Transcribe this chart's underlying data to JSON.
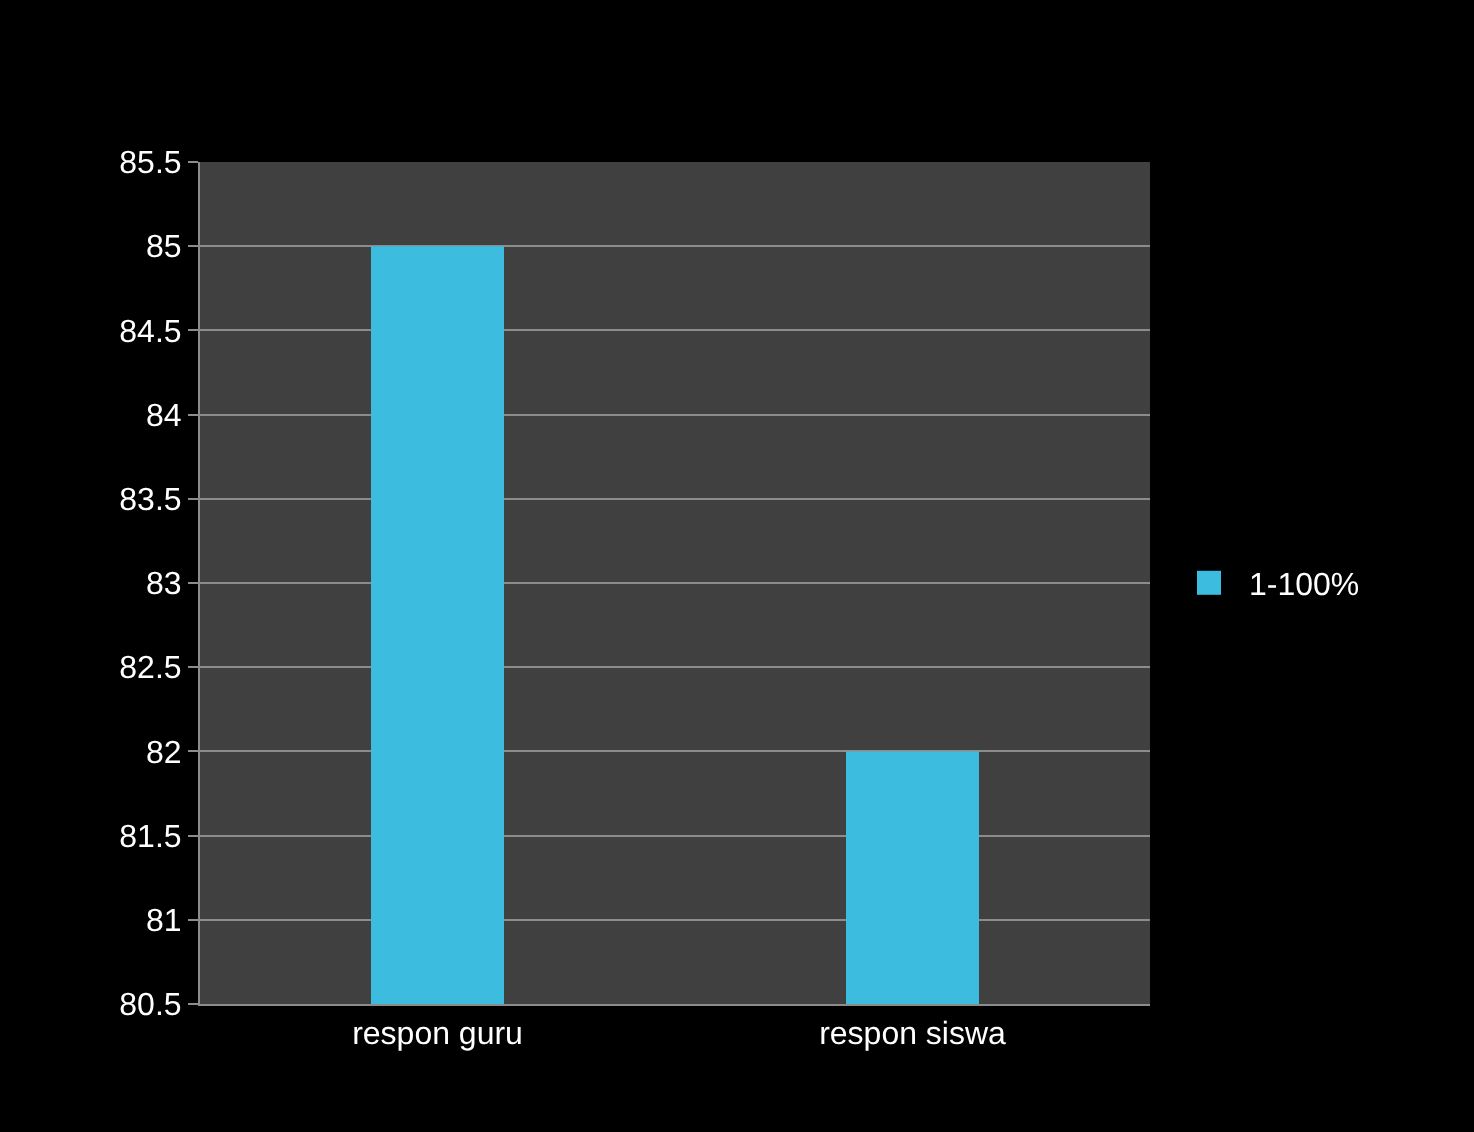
{
  "chart_data": {
    "type": "bar",
    "categories": [
      "respon guru",
      "respon siswa"
    ],
    "series": [
      {
        "name": "1-100%",
        "color": "#3cbde0",
        "values": [
          85,
          82
        ]
      }
    ],
    "ylim": [
      80.5,
      85.5
    ],
    "yticks": [
      80.5,
      81,
      81.5,
      82,
      82.5,
      83,
      83.5,
      84,
      84.5,
      85,
      85.5
    ],
    "grid": "y",
    "legend": "right"
  }
}
